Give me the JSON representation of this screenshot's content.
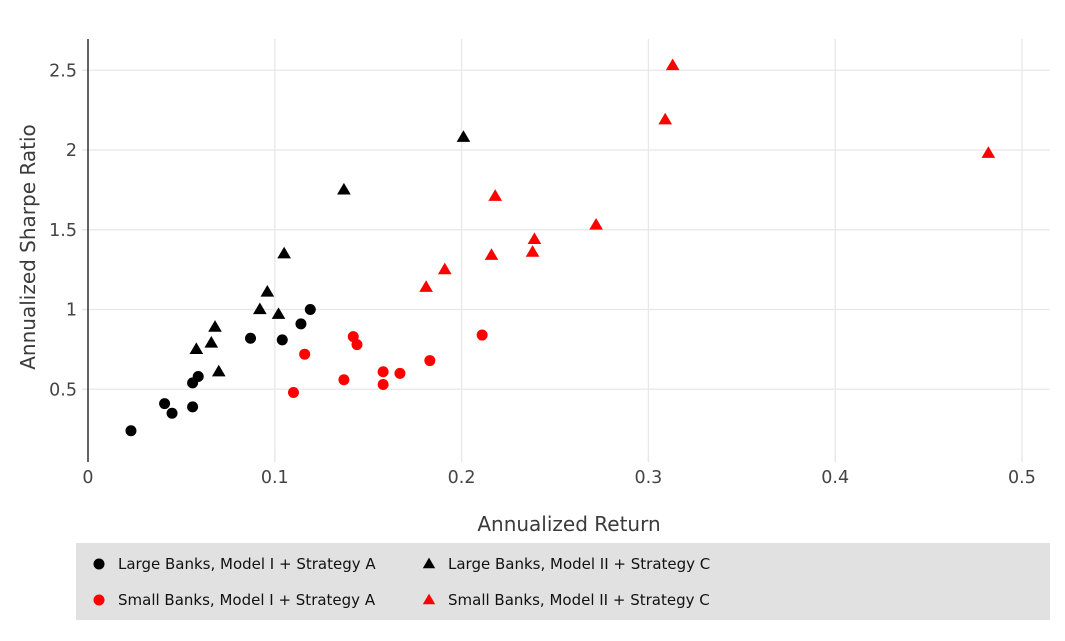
{
  "chart_data": {
    "type": "scatter",
    "title": "",
    "xlabel": "Annualized Return",
    "ylabel": "Annualized Sharpe Ratio",
    "xlim": [
      0,
      0.515
    ],
    "ylim": [
      0.088,
      2.696
    ],
    "x_ticks": [
      0,
      0.1,
      0.2,
      0.3,
      0.4,
      0.5
    ],
    "x_tick_labels": [
      "0",
      "0.1",
      "0.2",
      "0.3",
      "0.4",
      "0.5"
    ],
    "y_ticks": [
      0.5,
      1,
      1.5,
      2,
      2.5
    ],
    "y_tick_labels": [
      "0.5",
      "1",
      "1.5",
      "2",
      "2.5"
    ],
    "grid": true,
    "legend_position": "bottom",
    "series": [
      {
        "name": "Large Banks, Model I + Strategy A",
        "marker": "circle",
        "color": "#000000",
        "points": [
          [
            0.023,
            0.24
          ],
          [
            0.041,
            0.41
          ],
          [
            0.045,
            0.35
          ],
          [
            0.056,
            0.39
          ],
          [
            0.056,
            0.54
          ],
          [
            0.059,
            0.58
          ],
          [
            0.087,
            0.82
          ],
          [
            0.104,
            0.81
          ],
          [
            0.114,
            0.91
          ],
          [
            0.119,
            1.0
          ]
        ]
      },
      {
        "name": "Small Banks, Model I + Strategy A",
        "marker": "circle",
        "color": "#ff0000",
        "points": [
          [
            0.11,
            0.48
          ],
          [
            0.116,
            0.72
          ],
          [
            0.137,
            0.56
          ],
          [
            0.142,
            0.83
          ],
          [
            0.144,
            0.78
          ],
          [
            0.158,
            0.53
          ],
          [
            0.158,
            0.61
          ],
          [
            0.167,
            0.6
          ],
          [
            0.183,
            0.68
          ],
          [
            0.211,
            0.84
          ]
        ]
      },
      {
        "name": "Large Banks, Model II + Strategy C",
        "marker": "triangle",
        "color": "#000000",
        "points": [
          [
            0.058,
            0.75
          ],
          [
            0.066,
            0.79
          ],
          [
            0.068,
            0.89
          ],
          [
            0.07,
            0.61
          ],
          [
            0.092,
            1.0
          ],
          [
            0.096,
            1.11
          ],
          [
            0.102,
            0.97
          ],
          [
            0.105,
            1.35
          ],
          [
            0.137,
            1.75
          ],
          [
            0.201,
            2.08
          ]
        ]
      },
      {
        "name": "Small Banks, Model II + Strategy C",
        "marker": "triangle",
        "color": "#ff0000",
        "points": [
          [
            0.181,
            1.14
          ],
          [
            0.191,
            1.25
          ],
          [
            0.216,
            1.34
          ],
          [
            0.218,
            1.71
          ],
          [
            0.238,
            1.36
          ],
          [
            0.239,
            1.44
          ],
          [
            0.272,
            1.53
          ],
          [
            0.309,
            2.19
          ],
          [
            0.313,
            2.53
          ],
          [
            0.482,
            1.98
          ]
        ]
      }
    ]
  },
  "colors": {
    "black_series": "#000000",
    "red_series": "#ff0000",
    "grid": "#e8e8e8",
    "axis_line": "#2f2f2f",
    "tick_label": "#444444",
    "axis_title": "#3b3b3b",
    "legend_bg": "#e1e1e1"
  }
}
